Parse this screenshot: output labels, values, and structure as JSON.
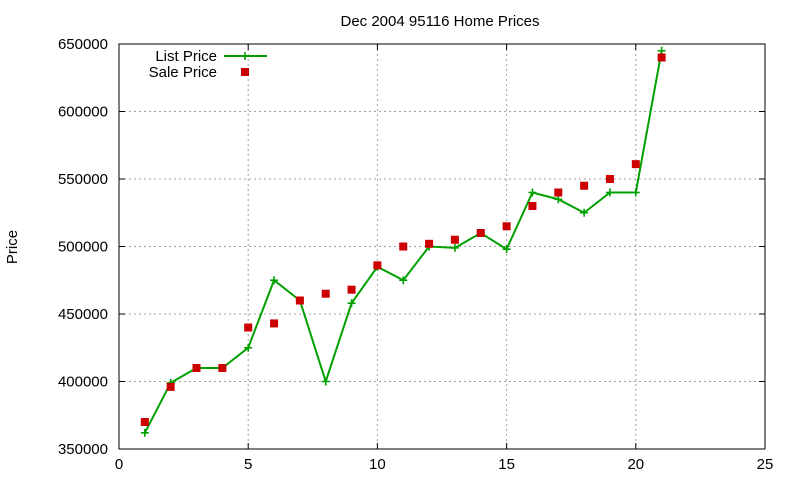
{
  "chart_data": {
    "type": "line",
    "title": "Dec 2004 95116 Home Prices",
    "xlabel": "",
    "ylabel": "Price",
    "xlim": [
      0,
      25
    ],
    "ylim": [
      350000,
      650000
    ],
    "x_ticks": [
      0,
      5,
      10,
      15,
      20,
      25
    ],
    "y_ticks": [
      350000,
      400000,
      450000,
      500000,
      550000,
      600000,
      650000
    ],
    "grid": true,
    "legend_position": "top-left",
    "series": [
      {
        "name": "List Price",
        "style": "line+plus",
        "color": "#00a000",
        "x": [
          1,
          2,
          3,
          4,
          5,
          6,
          7,
          8,
          9,
          10,
          11,
          12,
          13,
          14,
          15,
          16,
          17,
          18,
          19,
          20,
          21
        ],
        "y": [
          362000,
          399000,
          410000,
          410000,
          425000,
          475000,
          460000,
          400000,
          458000,
          485000,
          475000,
          500000,
          499000,
          510000,
          498000,
          540000,
          535000,
          525000,
          540000,
          540000,
          645000
        ]
      },
      {
        "name": "Sale Price",
        "style": "square",
        "color": "#cc0000",
        "x": [
          1,
          2,
          3,
          4,
          5,
          6,
          7,
          8,
          9,
          10,
          11,
          12,
          13,
          14,
          15,
          16,
          17,
          18,
          19,
          20,
          21
        ],
        "y": [
          370000,
          396000,
          410000,
          410000,
          440000,
          443000,
          460000,
          465000,
          468000,
          486000,
          500000,
          502000,
          505000,
          510000,
          515000,
          530000,
          540000,
          545000,
          550000,
          561000,
          640000
        ]
      }
    ]
  }
}
